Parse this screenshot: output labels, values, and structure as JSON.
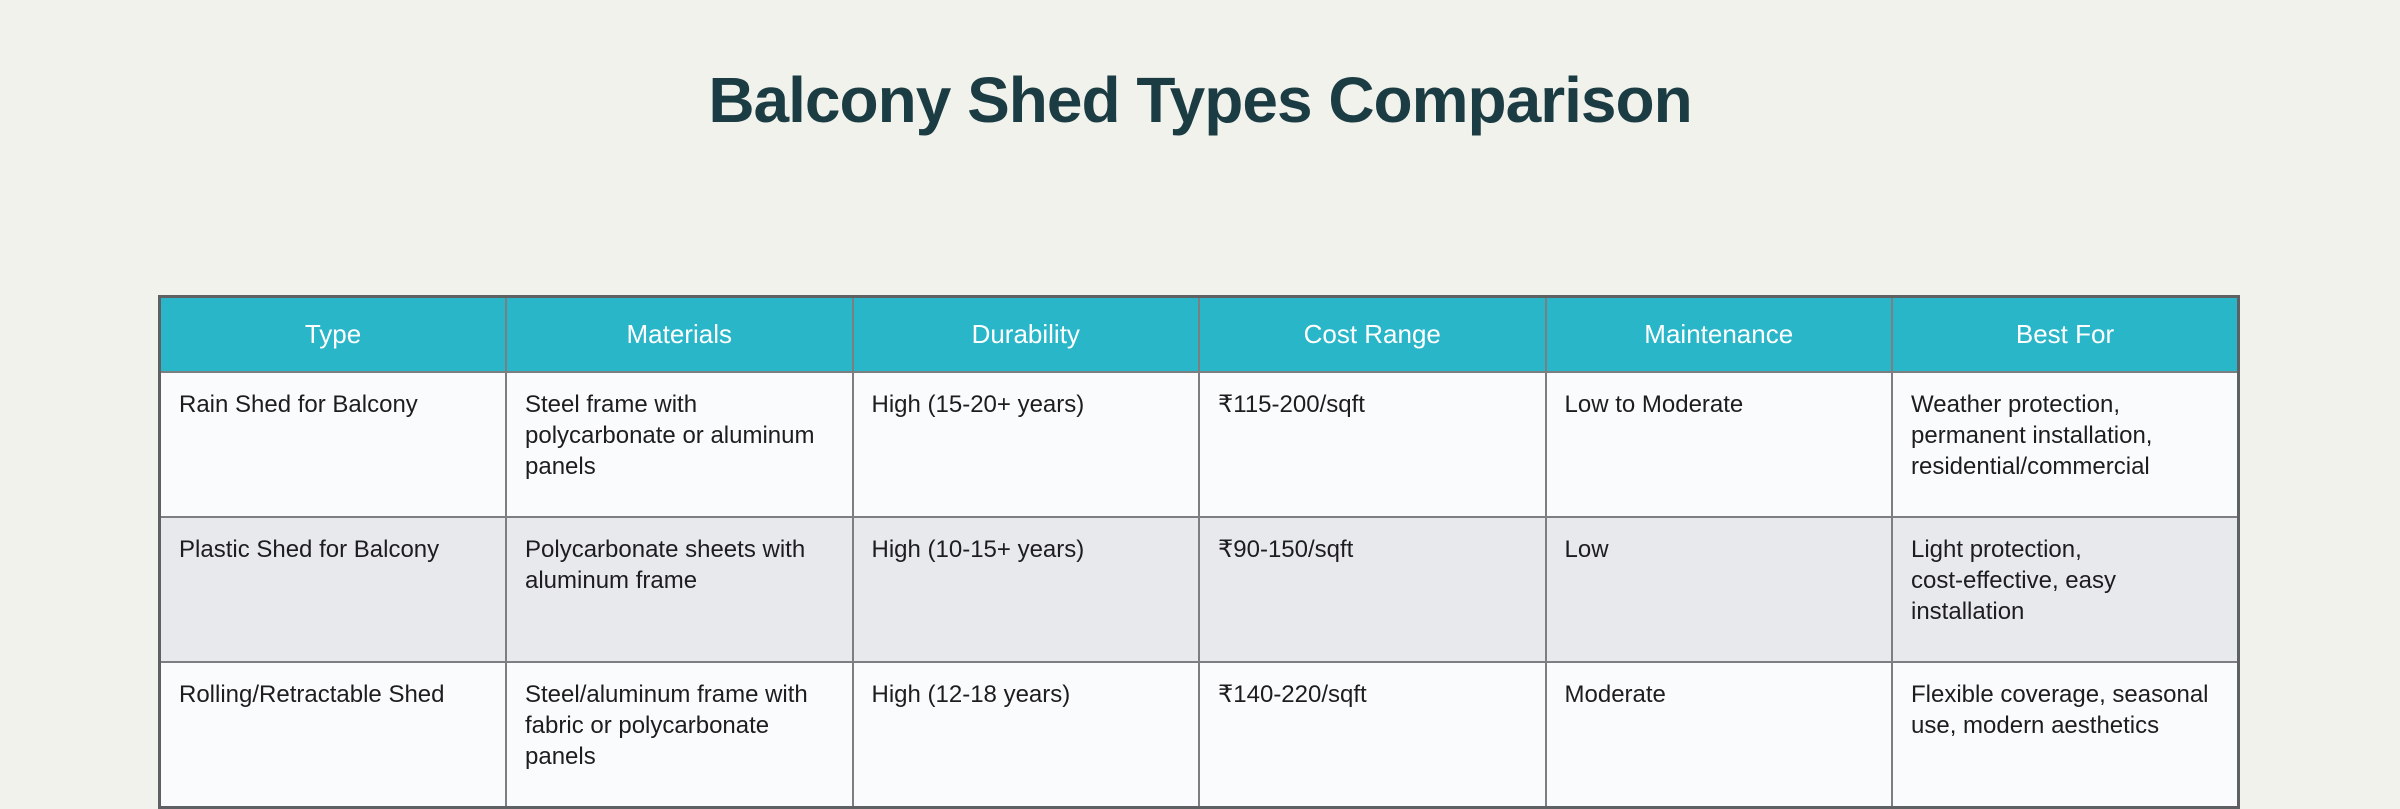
{
  "title": "Balcony Shed Types Comparison",
  "colors": {
    "page_background": "#f1f2ec",
    "title_text": "#1c3c44",
    "header_background": "#29b6c8",
    "header_text": "#ffffff",
    "row_background": "#fafbfd",
    "row_alt_background": "#e8e9ed",
    "cell_text": "#1d1d1f",
    "border": "#7c7f82"
  },
  "chart_data": {
    "type": "table",
    "title": "Balcony Shed Types Comparison",
    "columns": [
      "Type",
      "Materials",
      "Durability",
      "Cost Range",
      "Maintenance",
      "Best For"
    ],
    "rows": [
      [
        "Rain Shed for Balcony",
        "Steel frame with\npolycarbonate or aluminum\npanels",
        "High (15-20+ years)",
        "₹115-200/sqft",
        "Low to Moderate",
        "Weather protection,\npermanent installation,\nresidential/commercial"
      ],
      [
        "Plastic Shed for Balcony",
        "Polycarbonate sheets with\naluminum frame",
        "High (10-15+ years)",
        "₹90-150/sqft",
        "Low",
        "Light protection,\ncost-effective, easy\ninstallation"
      ],
      [
        "Rolling/Retractable Shed",
        "Steel/aluminum frame with\nfabric or polycarbonate\npanels",
        "High (12-18 years)",
        "₹140-220/sqft",
        "Moderate",
        "Flexible coverage, seasonal\nuse, modern aesthetics"
      ]
    ]
  }
}
